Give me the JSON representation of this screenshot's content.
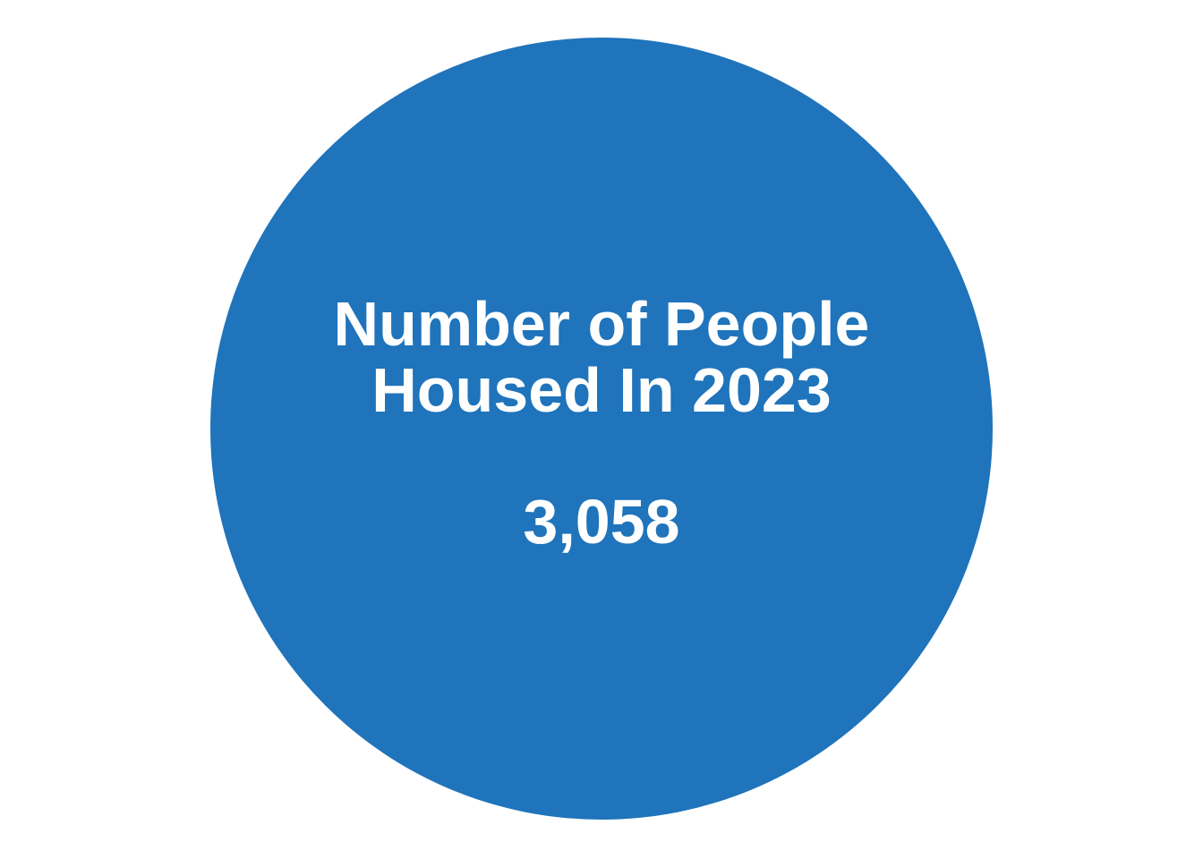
{
  "stat": {
    "title_line1": "Number of People",
    "title_line2": "Housed In 2023",
    "value": "3,058"
  },
  "colors": {
    "circle": "#1f74bb",
    "text": "#ffffff",
    "background": "#ffffff"
  }
}
